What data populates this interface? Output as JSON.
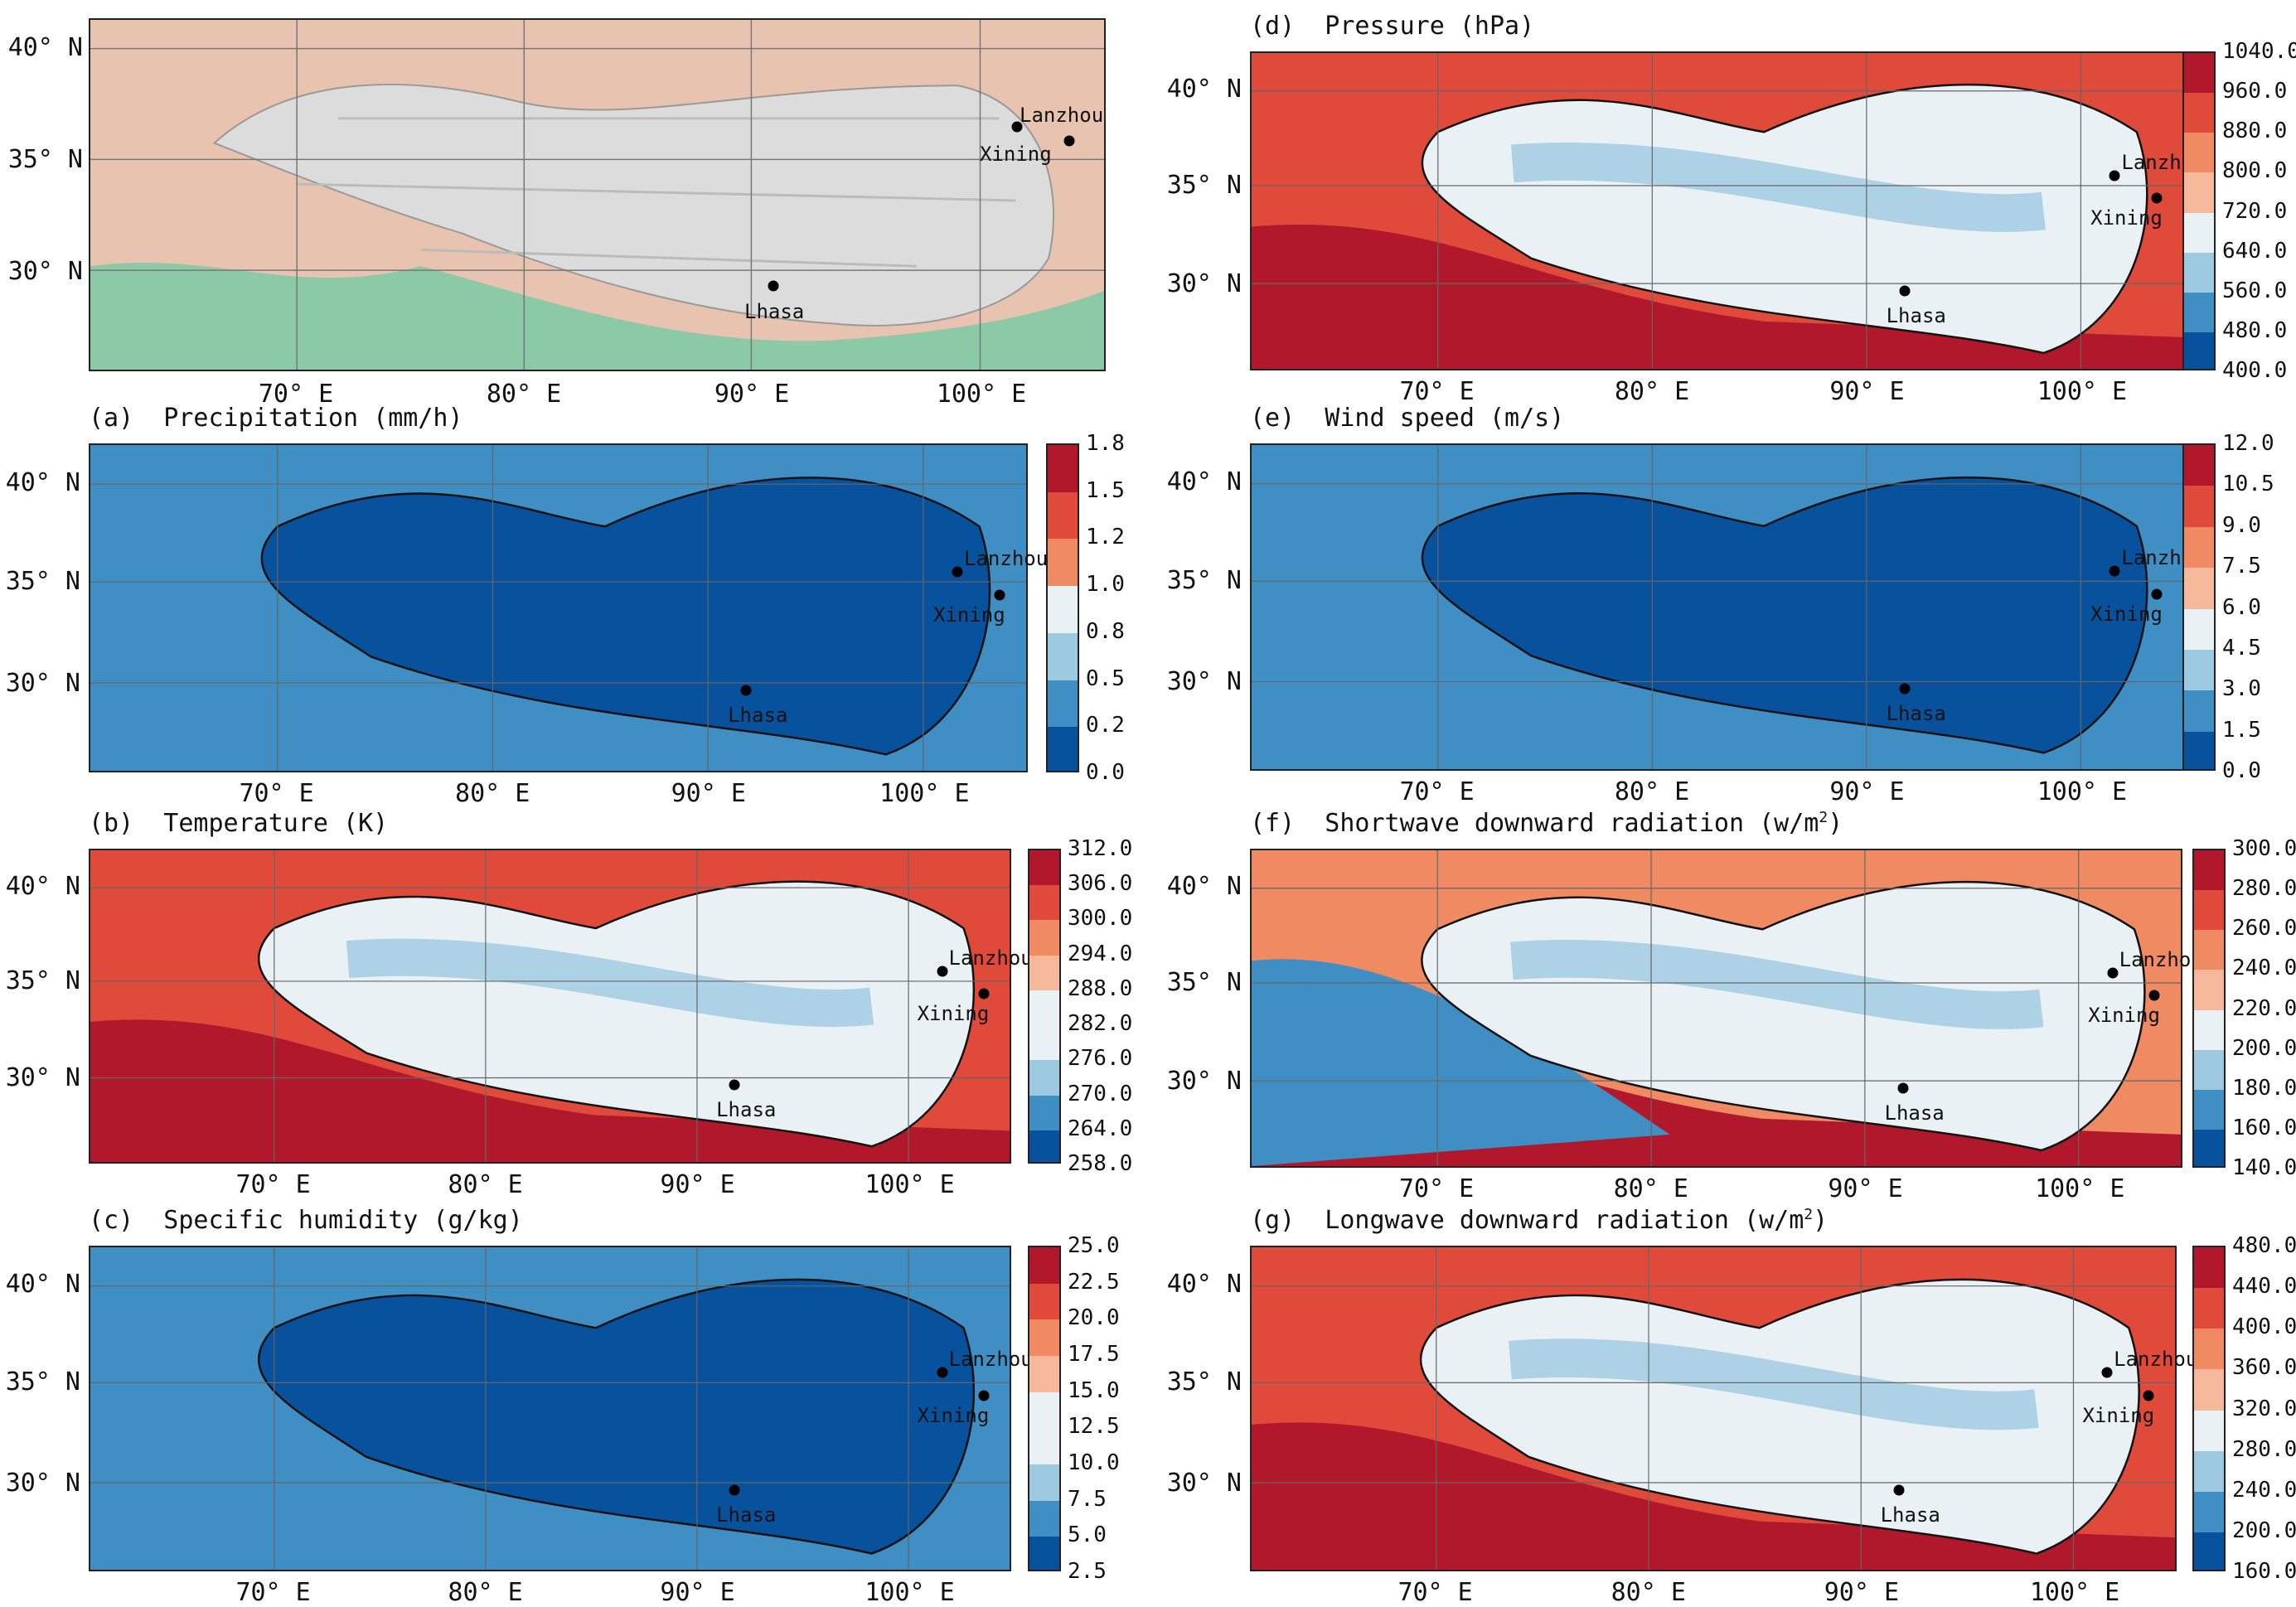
{
  "panels": {
    "a": {
      "title": "(a)  Precipitation (mm/h)",
      "colorbar": [
        "1.8",
        "1.5",
        "1.2",
        "1.0",
        "0.8",
        "0.5",
        "0.2",
        "0.0"
      ]
    },
    "b": {
      "title": "(b)  Temperature (K)",
      "colorbar": [
        "312.0",
        "306.0",
        "300.0",
        "294.0",
        "288.0",
        "282.0",
        "276.0",
        "270.0",
        "264.0",
        "258.0"
      ]
    },
    "c": {
      "title": "(c)  Specific humidity (g/kg)",
      "colorbar": [
        "25.0",
        "22.5",
        "20.0",
        "17.5",
        "15.0",
        "12.5",
        "10.0",
        "7.5",
        "5.0",
        "2.5"
      ]
    },
    "d": {
      "title": "(d)  Pressure (hPa)",
      "colorbar": [
        "1040.0",
        "960.0",
        "880.0",
        "800.0",
        "720.0",
        "640.0",
        "560.0",
        "480.0",
        "400.0"
      ]
    },
    "e": {
      "title": "(e)  Wind speed (m/s)",
      "colorbar": [
        "12.0",
        "10.5",
        "9.0",
        "7.5",
        "6.0",
        "4.5",
        "3.0",
        "1.5",
        "0.0"
      ]
    },
    "f": {
      "title": "(f)  Shortwave downward radiation (w/m",
      "sup": "2",
      "close": ")",
      "colorbar": [
        "300.0",
        "280.0",
        "260.0",
        "240.0",
        "220.0",
        "200.0",
        "180.0",
        "160.0",
        "140.0"
      ]
    },
    "g": {
      "title": "(g)  Longwave downward radiation (w/m",
      "sup": "2",
      "close": ")",
      "colorbar": [
        "480.0",
        "440.0",
        "400.0",
        "360.0",
        "320.0",
        "280.0",
        "240.0",
        "200.0",
        "160.0"
      ]
    }
  },
  "lat_labels": [
    "40° N",
    "35° N",
    "30° N"
  ],
  "lon_labels": [
    "70° E",
    "80° E",
    "90° E",
    "100° E"
  ],
  "cities": {
    "lanzhou": "Lanzhou",
    "xining": "Xining",
    "lhasa": "Lhasa"
  },
  "palette": {
    "blue_dark": "#08519c",
    "blue": "#3f8fc4",
    "blue_light": "#9ecae1",
    "pale": "#eaf1f5",
    "orange_light": "#f5b89b",
    "orange": "#ef8a62",
    "red": "#e04a3a",
    "red_dark": "#b2182b"
  }
}
